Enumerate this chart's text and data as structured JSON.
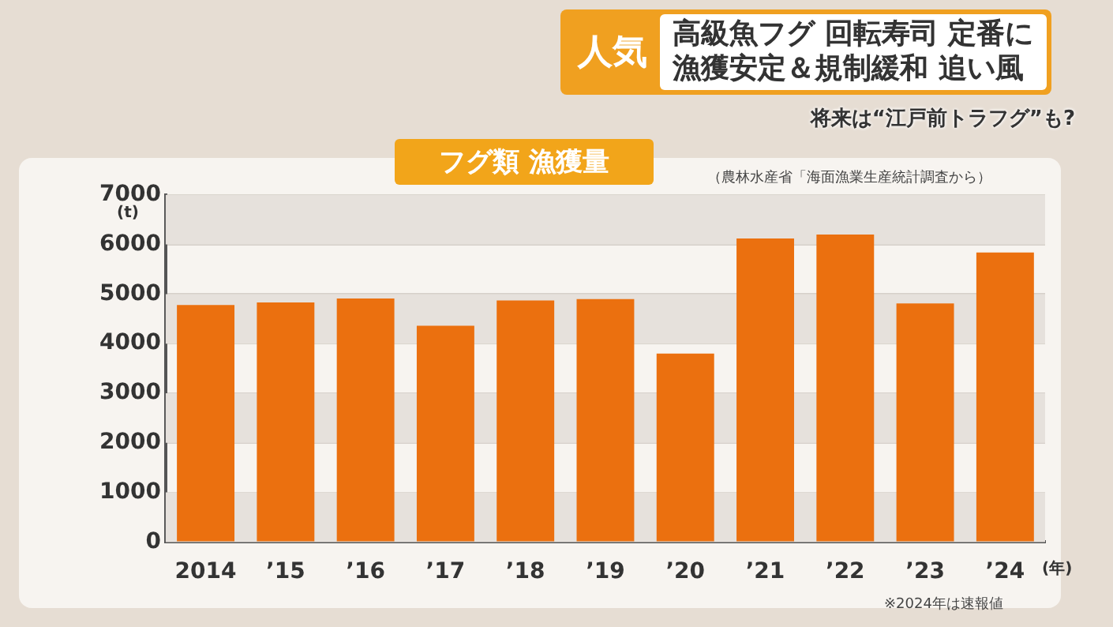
{
  "chart_data": {
    "type": "bar",
    "title": "フグ類 漁獲量",
    "annotations": [
      "人気",
      "高級魚フグ 回転寿司 定番に",
      "漁獲安定＆規制緩和 追い風",
      "将来は“江戸前トラフグ”も?",
      "（農林水産省「海面漁業生産統計調査から）",
      "※2024年は速報値"
    ],
    "ylabel": "(t)",
    "xlabel": "(年)",
    "categories": [
      "2014",
      "’15",
      "’16",
      "’17",
      "’18",
      "’19",
      "’20",
      "’21",
      "’22",
      "’23",
      "’24"
    ],
    "values": [
      4780,
      4830,
      4910,
      4360,
      4870,
      4900,
      3800,
      6120,
      6200,
      4810,
      5840
    ],
    "color": "#eb700f",
    "ylim": [
      0,
      7000
    ],
    "yticks": [
      0,
      1000,
      2000,
      3000,
      4000,
      5000,
      6000,
      7000
    ],
    "grid": "y"
  }
}
